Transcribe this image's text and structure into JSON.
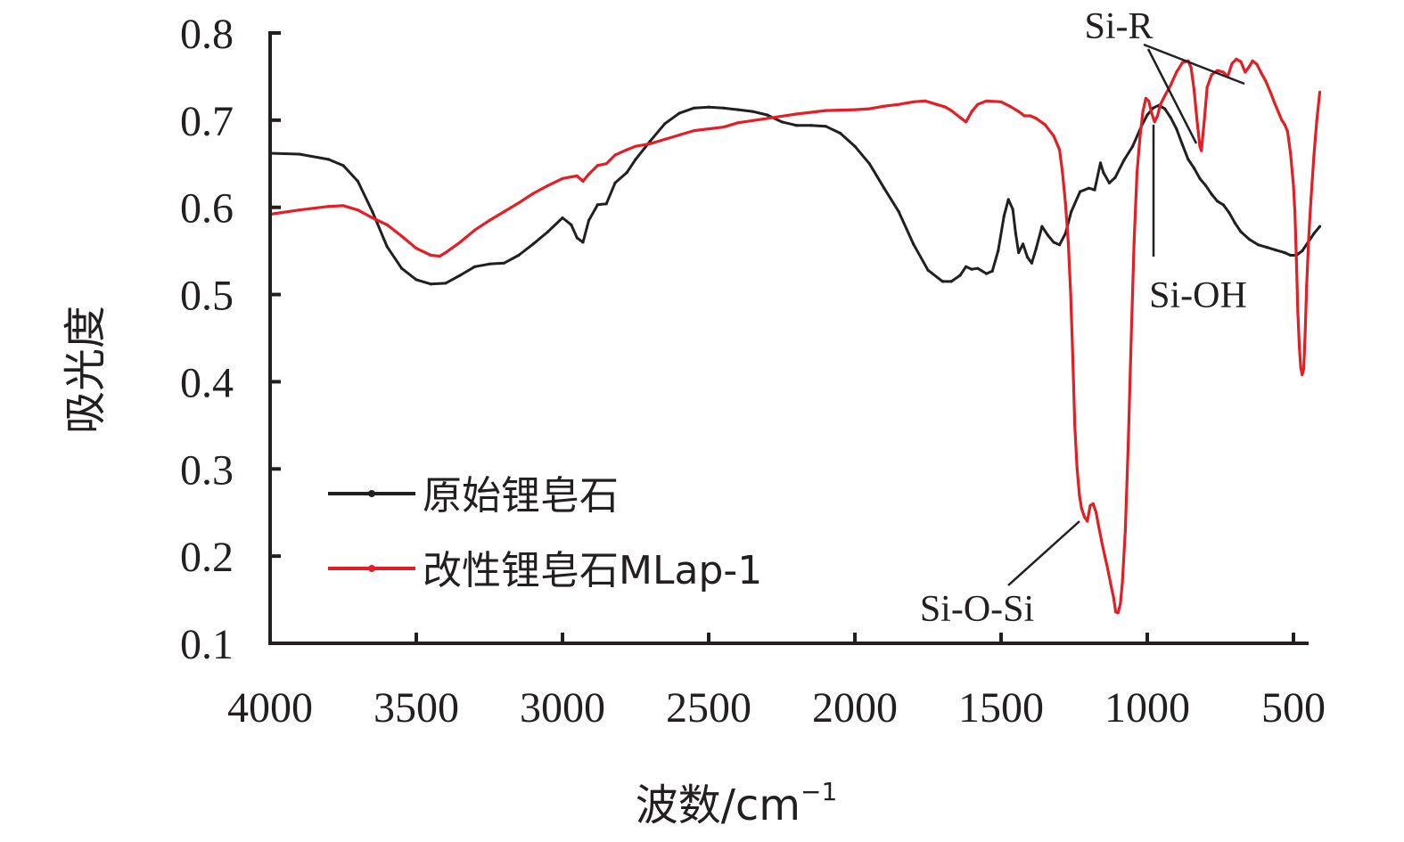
{
  "chart_data": {
    "type": "line",
    "title": "",
    "xlabel": "波数/cm",
    "xlabel_sup": "−1",
    "ylabel": "吸光度",
    "xlim": [
      4000,
      400
    ],
    "ylim": [
      0.1,
      0.8
    ],
    "x_reversed": true,
    "grid": false,
    "legend_position": "lower-left",
    "xticks": [
      4000,
      3500,
      3000,
      2500,
      2000,
      1500,
      1000,
      500
    ],
    "xtick_labels": [
      "4000",
      "3500",
      "3000",
      "2500",
      "2000",
      "1500",
      "1000",
      "500"
    ],
    "yticks": [
      0.1,
      0.2,
      0.3,
      0.4,
      0.5,
      0.6,
      0.7,
      0.8
    ],
    "ytick_labels": [
      "0.1",
      "0.2",
      "0.3",
      "0.4",
      "0.5",
      "0.6",
      "0.7",
      "0.8"
    ],
    "series": [
      {
        "name": "原始锂皂石",
        "color": "#231f20",
        "points": [
          [
            4000,
            0.662
          ],
          [
            3900,
            0.661
          ],
          [
            3800,
            0.655
          ],
          [
            3750,
            0.648
          ],
          [
            3700,
            0.63
          ],
          [
            3650,
            0.595
          ],
          [
            3600,
            0.555
          ],
          [
            3550,
            0.53
          ],
          [
            3500,
            0.517
          ],
          [
            3450,
            0.512
          ],
          [
            3400,
            0.513
          ],
          [
            3350,
            0.522
          ],
          [
            3300,
            0.532
          ],
          [
            3250,
            0.535
          ],
          [
            3200,
            0.536
          ],
          [
            3150,
            0.545
          ],
          [
            3100,
            0.558
          ],
          [
            3050,
            0.572
          ],
          [
            3000,
            0.588
          ],
          [
            2970,
            0.58
          ],
          [
            2950,
            0.565
          ],
          [
            2930,
            0.56
          ],
          [
            2910,
            0.585
          ],
          [
            2880,
            0.603
          ],
          [
            2850,
            0.604
          ],
          [
            2820,
            0.628
          ],
          [
            2780,
            0.64
          ],
          [
            2750,
            0.655
          ],
          [
            2700,
            0.676
          ],
          [
            2650,
            0.696
          ],
          [
            2600,
            0.708
          ],
          [
            2550,
            0.714
          ],
          [
            2500,
            0.715
          ],
          [
            2450,
            0.714
          ],
          [
            2400,
            0.712
          ],
          [
            2350,
            0.71
          ],
          [
            2300,
            0.706
          ],
          [
            2250,
            0.698
          ],
          [
            2200,
            0.694
          ],
          [
            2150,
            0.694
          ],
          [
            2100,
            0.693
          ],
          [
            2050,
            0.685
          ],
          [
            2000,
            0.67
          ],
          [
            1950,
            0.65
          ],
          [
            1900,
            0.622
          ],
          [
            1850,
            0.595
          ],
          [
            1800,
            0.558
          ],
          [
            1750,
            0.528
          ],
          [
            1700,
            0.515
          ],
          [
            1670,
            0.515
          ],
          [
            1640,
            0.522
          ],
          [
            1620,
            0.532
          ],
          [
            1600,
            0.529
          ],
          [
            1580,
            0.53
          ],
          [
            1550,
            0.524
          ],
          [
            1530,
            0.527
          ],
          [
            1510,
            0.55
          ],
          [
            1490,
            0.59
          ],
          [
            1475,
            0.609
          ],
          [
            1460,
            0.598
          ],
          [
            1450,
            0.57
          ],
          [
            1440,
            0.548
          ],
          [
            1425,
            0.558
          ],
          [
            1410,
            0.543
          ],
          [
            1395,
            0.536
          ],
          [
            1380,
            0.553
          ],
          [
            1360,
            0.578
          ],
          [
            1340,
            0.568
          ],
          [
            1320,
            0.56
          ],
          [
            1300,
            0.557
          ],
          [
            1280,
            0.57
          ],
          [
            1260,
            0.595
          ],
          [
            1230,
            0.618
          ],
          [
            1200,
            0.622
          ],
          [
            1180,
            0.62
          ],
          [
            1160,
            0.651
          ],
          [
            1150,
            0.64
          ],
          [
            1130,
            0.628
          ],
          [
            1110,
            0.634
          ],
          [
            1080,
            0.654
          ],
          [
            1050,
            0.67
          ],
          [
            1020,
            0.693
          ],
          [
            1000,
            0.706
          ],
          [
            980,
            0.714
          ],
          [
            960,
            0.717
          ],
          [
            940,
            0.713
          ],
          [
            920,
            0.703
          ],
          [
            900,
            0.69
          ],
          [
            880,
            0.672
          ],
          [
            860,
            0.655
          ],
          [
            840,
            0.645
          ],
          [
            820,
            0.633
          ],
          [
            800,
            0.625
          ],
          [
            780,
            0.615
          ],
          [
            760,
            0.607
          ],
          [
            740,
            0.603
          ],
          [
            720,
            0.594
          ],
          [
            700,
            0.582
          ],
          [
            680,
            0.572
          ],
          [
            650,
            0.563
          ],
          [
            620,
            0.557
          ],
          [
            590,
            0.554
          ],
          [
            560,
            0.551
          ],
          [
            530,
            0.548
          ],
          [
            510,
            0.545
          ],
          [
            490,
            0.545
          ],
          [
            470,
            0.55
          ],
          [
            450,
            0.56
          ],
          [
            430,
            0.57
          ],
          [
            410,
            0.578
          ]
        ]
      },
      {
        "name": "改性锂皂石MLap-1",
        "color": "#e31e24",
        "points": [
          [
            4000,
            0.592
          ],
          [
            3900,
            0.597
          ],
          [
            3800,
            0.601
          ],
          [
            3750,
            0.602
          ],
          [
            3700,
            0.597
          ],
          [
            3650,
            0.588
          ],
          [
            3600,
            0.58
          ],
          [
            3550,
            0.567
          ],
          [
            3500,
            0.553
          ],
          [
            3450,
            0.545
          ],
          [
            3420,
            0.544
          ],
          [
            3400,
            0.548
          ],
          [
            3350,
            0.56
          ],
          [
            3300,
            0.574
          ],
          [
            3250,
            0.585
          ],
          [
            3200,
            0.595
          ],
          [
            3150,
            0.605
          ],
          [
            3100,
            0.616
          ],
          [
            3050,
            0.625
          ],
          [
            3000,
            0.633
          ],
          [
            2970,
            0.635
          ],
          [
            2950,
            0.636
          ],
          [
            2930,
            0.63
          ],
          [
            2910,
            0.638
          ],
          [
            2880,
            0.648
          ],
          [
            2850,
            0.65
          ],
          [
            2820,
            0.66
          ],
          [
            2780,
            0.666
          ],
          [
            2750,
            0.67
          ],
          [
            2700,
            0.673
          ],
          [
            2650,
            0.678
          ],
          [
            2600,
            0.683
          ],
          [
            2550,
            0.688
          ],
          [
            2500,
            0.69
          ],
          [
            2450,
            0.692
          ],
          [
            2400,
            0.697
          ],
          [
            2300,
            0.702
          ],
          [
            2200,
            0.707
          ],
          [
            2100,
            0.711
          ],
          [
            2000,
            0.712
          ],
          [
            1950,
            0.713
          ],
          [
            1900,
            0.716
          ],
          [
            1850,
            0.718
          ],
          [
            1800,
            0.721
          ],
          [
            1760,
            0.722
          ],
          [
            1720,
            0.718
          ],
          [
            1690,
            0.715
          ],
          [
            1670,
            0.711
          ],
          [
            1640,
            0.703
          ],
          [
            1620,
            0.698
          ],
          [
            1600,
            0.71
          ],
          [
            1580,
            0.718
          ],
          [
            1550,
            0.722
          ],
          [
            1500,
            0.721
          ],
          [
            1470,
            0.716
          ],
          [
            1440,
            0.71
          ],
          [
            1420,
            0.705
          ],
          [
            1400,
            0.705
          ],
          [
            1380,
            0.702
          ],
          [
            1350,
            0.695
          ],
          [
            1320,
            0.682
          ],
          [
            1300,
            0.666
          ],
          [
            1290,
            0.64
          ],
          [
            1280,
            0.605
          ],
          [
            1270,
            0.56
          ],
          [
            1262,
            0.5
          ],
          [
            1255,
            0.43
          ],
          [
            1248,
            0.35
          ],
          [
            1240,
            0.3
          ],
          [
            1232,
            0.27
          ],
          [
            1225,
            0.255
          ],
          [
            1215,
            0.245
          ],
          [
            1205,
            0.24
          ],
          [
            1195,
            0.258
          ],
          [
            1185,
            0.26
          ],
          [
            1175,
            0.25
          ],
          [
            1165,
            0.232
          ],
          [
            1155,
            0.215
          ],
          [
            1145,
            0.2
          ],
          [
            1135,
            0.185
          ],
          [
            1125,
            0.168
          ],
          [
            1115,
            0.152
          ],
          [
            1108,
            0.136
          ],
          [
            1100,
            0.135
          ],
          [
            1092,
            0.145
          ],
          [
            1085,
            0.17
          ],
          [
            1075,
            0.23
          ],
          [
            1065,
            0.33
          ],
          [
            1055,
            0.45
          ],
          [
            1045,
            0.56
          ],
          [
            1035,
            0.64
          ],
          [
            1025,
            0.68
          ],
          [
            1015,
            0.71
          ],
          [
            1005,
            0.725
          ],
          [
            995,
            0.722
          ],
          [
            985,
            0.708
          ],
          [
            975,
            0.698
          ],
          [
            965,
            0.705
          ],
          [
            955,
            0.718
          ],
          [
            940,
            0.728
          ],
          [
            920,
            0.74
          ],
          [
            900,
            0.755
          ],
          [
            880,
            0.766
          ],
          [
            860,
            0.768
          ],
          [
            850,
            0.76
          ],
          [
            840,
            0.735
          ],
          [
            830,
            0.7
          ],
          [
            820,
            0.67
          ],
          [
            815,
            0.665
          ],
          [
            805,
            0.7
          ],
          [
            795,
            0.738
          ],
          [
            780,
            0.752
          ],
          [
            760,
            0.757
          ],
          [
            740,
            0.755
          ],
          [
            725,
            0.75
          ],
          [
            710,
            0.765
          ],
          [
            695,
            0.77
          ],
          [
            680,
            0.767
          ],
          [
            665,
            0.755
          ],
          [
            650,
            0.762
          ],
          [
            640,
            0.768
          ],
          [
            625,
            0.764
          ],
          [
            610,
            0.754
          ],
          [
            595,
            0.745
          ],
          [
            580,
            0.733
          ],
          [
            565,
            0.72
          ],
          [
            550,
            0.708
          ],
          [
            540,
            0.7
          ],
          [
            530,
            0.695
          ],
          [
            520,
            0.687
          ],
          [
            510,
            0.662
          ],
          [
            500,
            0.625
          ],
          [
            495,
            0.595
          ],
          [
            490,
            0.54
          ],
          [
            485,
            0.48
          ],
          [
            480,
            0.44
          ],
          [
            475,
            0.416
          ],
          [
            470,
            0.408
          ],
          [
            465,
            0.415
          ],
          [
            460,
            0.455
          ],
          [
            455,
            0.51
          ],
          [
            448,
            0.565
          ],
          [
            440,
            0.61
          ],
          [
            430,
            0.66
          ],
          [
            420,
            0.7
          ],
          [
            410,
            0.732
          ]
        ]
      }
    ],
    "annotations": [
      {
        "text": "Si-R",
        "leader_targets": [
          [
            860,
            0.766
          ],
          [
            815,
            0.666
          ]
        ],
        "label_anchor": [
          900,
          0.797
        ]
      },
      {
        "text": "Si-OH",
        "leader_targets": [
          [
            965,
            0.705
          ]
        ],
        "label_anchor": [
          965,
          0.56
        ]
      },
      {
        "text": "Si-O-Si",
        "leader_targets": [
          [
            1210,
            0.243
          ]
        ],
        "label_anchor": [
          1330,
          0.148
        ]
      }
    ]
  }
}
